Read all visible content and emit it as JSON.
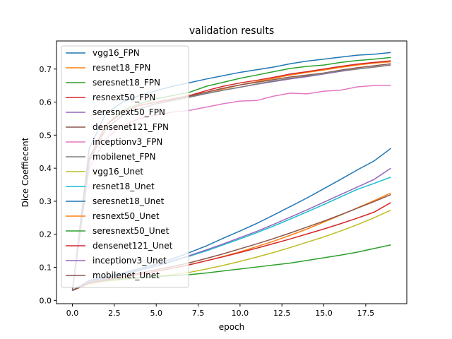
{
  "chart_data": {
    "type": "line",
    "title": "validation results",
    "xlabel": "epoch",
    "ylabel": "Dice Coeffiecent",
    "xlim": [
      -0.95,
      19.95
    ],
    "ylim": [
      -0.01,
      0.785
    ],
    "xticks": [
      0.0,
      2.5,
      5.0,
      7.5,
      10.0,
      12.5,
      15.0,
      17.5
    ],
    "xtick_labels": [
      "0.0",
      "2.5",
      "5.0",
      "7.5",
      "10.0",
      "12.5",
      "15.0",
      "17.5"
    ],
    "yticks": [
      0.0,
      0.1,
      0.2,
      0.3,
      0.4,
      0.5,
      0.6,
      0.7
    ],
    "ytick_labels": [
      "0.0",
      "0.1",
      "0.2",
      "0.3",
      "0.4",
      "0.5",
      "0.6",
      "0.7"
    ],
    "grid": false,
    "legend_position": "top-left",
    "x": [
      0,
      1,
      2,
      3,
      4,
      5,
      6,
      7,
      8,
      9,
      10,
      11,
      12,
      13,
      14,
      15,
      16,
      17,
      18,
      19
    ],
    "series": [
      {
        "name": "vgg16_FPN",
        "color": "#1f77b4",
        "values": [
          0.03,
          0.46,
          0.566,
          0.6,
          0.62,
          0.635,
          0.648,
          0.659,
          0.67,
          0.68,
          0.69,
          0.698,
          0.706,
          0.716,
          0.724,
          0.73,
          0.736,
          0.742,
          0.745,
          0.75
        ]
      },
      {
        "name": "resnet18_FPN",
        "color": "#ff7f0e",
        "values": [
          0.03,
          0.43,
          0.53,
          0.57,
          0.59,
          0.6,
          0.61,
          0.62,
          0.63,
          0.64,
          0.652,
          0.662,
          0.672,
          0.682,
          0.69,
          0.697,
          0.705,
          0.712,
          0.718,
          0.722
        ]
      },
      {
        "name": "seresnet18_FPN",
        "color": "#2ca02c",
        "values": [
          0.03,
          0.43,
          0.53,
          0.575,
          0.595,
          0.61,
          0.62,
          0.63,
          0.648,
          0.66,
          0.672,
          0.682,
          0.692,
          0.702,
          0.708,
          0.712,
          0.72,
          0.726,
          0.73,
          0.735
        ]
      },
      {
        "name": "resnext50_FPN",
        "color": "#d62728",
        "values": [
          0.03,
          0.43,
          0.53,
          0.57,
          0.59,
          0.6,
          0.61,
          0.62,
          0.635,
          0.648,
          0.658,
          0.666,
          0.675,
          0.685,
          0.692,
          0.7,
          0.708,
          0.715,
          0.72,
          0.725
        ]
      },
      {
        "name": "seresnext50_FPN",
        "color": "#9467bd",
        "values": [
          0.03,
          0.42,
          0.52,
          0.56,
          0.58,
          0.595,
          0.605,
          0.615,
          0.626,
          0.636,
          0.645,
          0.654,
          0.662,
          0.67,
          0.677,
          0.685,
          0.693,
          0.7,
          0.706,
          0.712
        ]
      },
      {
        "name": "densenet121_FPN",
        "color": "#8c564b",
        "values": [
          0.03,
          0.42,
          0.52,
          0.56,
          0.58,
          0.595,
          0.607,
          0.618,
          0.63,
          0.642,
          0.652,
          0.66,
          0.668,
          0.676,
          0.682,
          0.688,
          0.697,
          0.704,
          0.71,
          0.716
        ]
      },
      {
        "name": "inceptionv3_FPN",
        "color": "#e377c2",
        "values": [
          0.03,
          0.4,
          0.49,
          0.53,
          0.55,
          0.56,
          0.57,
          0.575,
          0.585,
          0.595,
          0.603,
          0.605,
          0.618,
          0.627,
          0.625,
          0.633,
          0.636,
          0.646,
          0.65,
          0.651
        ]
      },
      {
        "name": "mobilenet_FPN",
        "color": "#7f7f7f",
        "values": [
          0.03,
          0.42,
          0.52,
          0.56,
          0.58,
          0.595,
          0.605,
          0.615,
          0.626,
          0.636,
          0.645,
          0.655,
          0.664,
          0.672,
          0.679,
          0.687,
          0.695,
          0.7,
          0.706,
          0.712
        ]
      },
      {
        "name": "vgg16_Unet",
        "color": "#bcbd22",
        "values": [
          0.03,
          0.05,
          0.058,
          0.063,
          0.068,
          0.073,
          0.078,
          0.085,
          0.095,
          0.106,
          0.118,
          0.131,
          0.145,
          0.16,
          0.176,
          0.192,
          0.21,
          0.229,
          0.25,
          0.273
        ]
      },
      {
        "name": "resnet18_Unet",
        "color": "#17becf",
        "values": [
          0.03,
          0.055,
          0.068,
          0.078,
          0.09,
          0.104,
          0.118,
          0.134,
          0.15,
          0.168,
          0.186,
          0.205,
          0.225,
          0.246,
          0.268,
          0.29,
          0.313,
          0.336,
          0.354,
          0.373
        ]
      },
      {
        "name": "seresnet18_Unet",
        "color": "#1f77b4",
        "values": [
          0.03,
          0.06,
          0.072,
          0.083,
          0.096,
          0.11,
          0.126,
          0.145,
          0.165,
          0.188,
          0.21,
          0.233,
          0.258,
          0.284,
          0.31,
          0.338,
          0.366,
          0.395,
          0.422,
          0.46
        ]
      },
      {
        "name": "resnext50_Unet",
        "color": "#ff7f0e",
        "values": [
          0.03,
          0.052,
          0.062,
          0.07,
          0.079,
          0.088,
          0.098,
          0.108,
          0.12,
          0.133,
          0.147,
          0.163,
          0.179,
          0.197,
          0.216,
          0.237,
          0.258,
          0.28,
          0.302,
          0.325
        ]
      },
      {
        "name": "seresnext50_Unet",
        "color": "#2ca02c",
        "values": [
          0.03,
          0.053,
          0.06,
          0.065,
          0.069,
          0.072,
          0.075,
          0.078,
          0.083,
          0.089,
          0.095,
          0.101,
          0.107,
          0.113,
          0.121,
          0.129,
          0.137,
          0.146,
          0.157,
          0.168
        ]
      },
      {
        "name": "densenet121_Unet",
        "color": "#d62728",
        "values": [
          0.03,
          0.052,
          0.062,
          0.07,
          0.079,
          0.088,
          0.098,
          0.108,
          0.12,
          0.132,
          0.145,
          0.158,
          0.172,
          0.186,
          0.201,
          0.216,
          0.232,
          0.249,
          0.267,
          0.296
        ]
      },
      {
        "name": "inceptionv3_Unet",
        "color": "#9467bd",
        "values": [
          0.03,
          0.058,
          0.07,
          0.08,
          0.092,
          0.105,
          0.12,
          0.136,
          0.153,
          0.171,
          0.19,
          0.209,
          0.23,
          0.252,
          0.274,
          0.297,
          0.32,
          0.343,
          0.366,
          0.4
        ]
      },
      {
        "name": "mobilenet_Unet",
        "color": "#8c564b",
        "values": [
          0.03,
          0.054,
          0.064,
          0.073,
          0.083,
          0.093,
          0.103,
          0.114,
          0.127,
          0.141,
          0.156,
          0.171,
          0.187,
          0.204,
          0.222,
          0.24,
          0.259,
          0.279,
          0.299,
          0.32
        ]
      }
    ]
  }
}
